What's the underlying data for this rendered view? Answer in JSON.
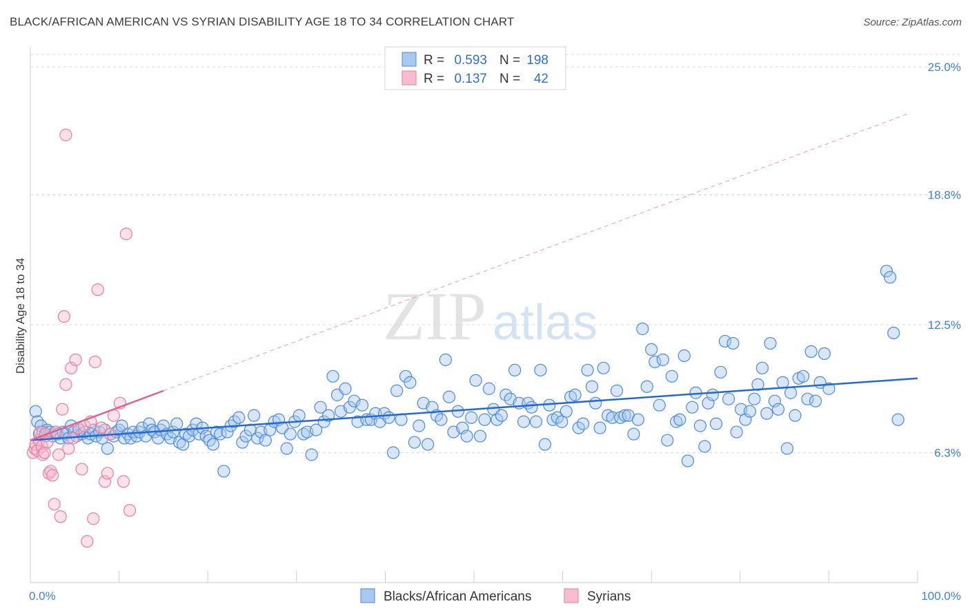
{
  "title": "BLACK/AFRICAN AMERICAN VS SYRIAN DISABILITY AGE 18 TO 34 CORRELATION CHART",
  "source": "Source: ZipAtlas.com",
  "watermark": {
    "zip": "ZIP",
    "atlas": "atlas"
  },
  "colors": {
    "blue_fill": "#a8c8f0",
    "blue_stroke": "#4a8ad8",
    "blue_line": "#2468d0",
    "pink_fill": "#f6bcd0",
    "pink_stroke": "#e57ca0",
    "pink_line": "#e0608c",
    "grid": "#d9d9d9",
    "tick_text": "#3e7fd8"
  },
  "legend": {
    "rows": [
      {
        "r_label": "R =",
        "r_value": "0.593",
        "n_label": "N =",
        "n_value": "198",
        "series": "blue"
      },
      {
        "r_label": "R =",
        "r_value": "0.137",
        "n_label": "N =",
        "n_value": "42",
        "series": "pink"
      }
    ]
  },
  "chart_data": {
    "type": "scatter",
    "title": "BLACK/AFRICAN AMERICAN VS SYRIAN DISABILITY AGE 18 TO 34 CORRELATION CHART",
    "xlabel": "",
    "ylabel": "Disability Age 18 to 34",
    "xlim": [
      0,
      100
    ],
    "ylim": [
      0,
      25.0
    ],
    "x_tick_labels": [
      "0.0%",
      "100.0%"
    ],
    "y_ticks": [
      6.3,
      12.5,
      18.8,
      25.0
    ],
    "y_tick_labels": [
      "6.3%",
      "12.5%",
      "18.8%",
      "25.0%"
    ],
    "grid": "horizontal dashed",
    "legend_position": "top-center",
    "series": [
      {
        "name": "Blacks/African Americans",
        "color": "#4a8ad8",
        "trend": {
          "x": [
            0,
            100
          ],
          "y": [
            6.9,
            9.9
          ]
        },
        "points": [
          [
            0.6,
            8.3
          ],
          [
            0.8,
            7.8
          ],
          [
            1.0,
            7.2
          ],
          [
            1.2,
            7.6
          ],
          [
            1.4,
            7.3
          ],
          [
            1.7,
            7.1
          ],
          [
            1.9,
            7.4
          ],
          [
            2.2,
            7.3
          ],
          [
            2.5,
            7.1
          ],
          [
            2.8,
            7.3
          ],
          [
            3.1,
            7.2
          ],
          [
            3.4,
            7.0
          ],
          [
            3.7,
            7.3
          ],
          [
            4.0,
            7.2
          ],
          [
            4.3,
            7.0
          ],
          [
            4.6,
            7.6
          ],
          [
            4.9,
            7.3
          ],
          [
            5.2,
            7.1
          ],
          [
            5.5,
            7.4
          ],
          [
            5.8,
            7.2
          ],
          [
            6.1,
            7.3
          ],
          [
            6.5,
            7.0
          ],
          [
            6.8,
            7.2
          ],
          [
            7.1,
            7.4
          ],
          [
            7.4,
            7.1
          ],
          [
            7.8,
            7.3
          ],
          [
            8.1,
            7.0
          ],
          [
            8.4,
            7.4
          ],
          [
            8.7,
            6.5
          ],
          [
            9.0,
            7.2
          ],
          [
            9.4,
            7.1
          ],
          [
            9.7,
            7.3
          ],
          [
            10.0,
            7.4
          ],
          [
            10.3,
            7.6
          ],
          [
            10.6,
            7.0
          ],
          [
            11.0,
            7.2
          ],
          [
            11.3,
            7.0
          ],
          [
            11.6,
            7.3
          ],
          [
            12.0,
            7.1
          ],
          [
            12.3,
            7.3
          ],
          [
            12.6,
            7.5
          ],
          [
            13.0,
            7.1
          ],
          [
            13.4,
            7.7
          ],
          [
            13.7,
            7.4
          ],
          [
            14.0,
            7.3
          ],
          [
            14.4,
            7.0
          ],
          [
            14.7,
            7.4
          ],
          [
            15.0,
            7.6
          ],
          [
            15.4,
            7.2
          ],
          [
            15.8,
            7.0
          ],
          [
            16.1,
            7.3
          ],
          [
            16.5,
            7.7
          ],
          [
            16.8,
            6.8
          ],
          [
            17.2,
            6.7
          ],
          [
            17.5,
            7.2
          ],
          [
            17.9,
            7.1
          ],
          [
            18.3,
            7.4
          ],
          [
            18.7,
            7.7
          ],
          [
            19.0,
            7.2
          ],
          [
            19.4,
            7.5
          ],
          [
            19.8,
            7.1
          ],
          [
            20.2,
            6.9
          ],
          [
            20.6,
            6.7
          ],
          [
            21.0,
            7.3
          ],
          [
            21.4,
            7.2
          ],
          [
            21.8,
            5.4
          ],
          [
            22.2,
            7.3
          ],
          [
            22.6,
            7.6
          ],
          [
            23.0,
            7.8
          ],
          [
            23.5,
            8.0
          ],
          [
            23.9,
            6.8
          ],
          [
            24.3,
            7.1
          ],
          [
            24.8,
            7.4
          ],
          [
            25.2,
            8.1
          ],
          [
            25.6,
            7.0
          ],
          [
            26.0,
            7.3
          ],
          [
            26.5,
            6.9
          ],
          [
            27.0,
            7.4
          ],
          [
            27.5,
            7.8
          ],
          [
            28.0,
            7.9
          ],
          [
            28.4,
            7.5
          ],
          [
            28.9,
            6.5
          ],
          [
            29.3,
            7.2
          ],
          [
            29.8,
            7.8
          ],
          [
            30.3,
            8.1
          ],
          [
            30.8,
            7.2
          ],
          [
            31.2,
            7.3
          ],
          [
            31.7,
            6.2
          ],
          [
            32.2,
            7.4
          ],
          [
            32.7,
            8.5
          ],
          [
            33.1,
            7.8
          ],
          [
            33.6,
            8.1
          ],
          [
            34.1,
            10.0
          ],
          [
            34.6,
            9.1
          ],
          [
            35.0,
            8.3
          ],
          [
            35.5,
            9.4
          ],
          [
            36.0,
            8.5
          ],
          [
            36.5,
            8.8
          ],
          [
            36.9,
            7.8
          ],
          [
            37.4,
            8.6
          ],
          [
            37.9,
            7.9
          ],
          [
            38.4,
            7.9
          ],
          [
            38.9,
            8.2
          ],
          [
            39.4,
            7.8
          ],
          [
            39.9,
            8.2
          ],
          [
            40.4,
            8.0
          ],
          [
            40.9,
            6.3
          ],
          [
            41.3,
            9.3
          ],
          [
            41.8,
            7.9
          ],
          [
            42.3,
            10.0
          ],
          [
            42.8,
            9.7
          ],
          [
            43.3,
            6.8
          ],
          [
            43.8,
            7.6
          ],
          [
            44.3,
            8.7
          ],
          [
            44.8,
            6.7
          ],
          [
            45.3,
            8.5
          ],
          [
            45.8,
            8.1
          ],
          [
            46.3,
            7.9
          ],
          [
            46.8,
            10.8
          ],
          [
            47.2,
            9.0
          ],
          [
            47.7,
            7.3
          ],
          [
            48.2,
            8.3
          ],
          [
            48.7,
            7.5
          ],
          [
            49.2,
            7.1
          ],
          [
            49.7,
            8.0
          ],
          [
            50.2,
            9.8
          ],
          [
            50.7,
            7.1
          ],
          [
            51.2,
            7.9
          ],
          [
            51.7,
            9.4
          ],
          [
            52.2,
            8.4
          ],
          [
            52.6,
            7.9
          ],
          [
            53.1,
            8.1
          ],
          [
            53.6,
            9.1
          ],
          [
            54.1,
            8.9
          ],
          [
            54.6,
            10.3
          ],
          [
            55.1,
            8.7
          ],
          [
            55.6,
            7.8
          ],
          [
            56.1,
            8.7
          ],
          [
            56.5,
            8.5
          ],
          [
            57.0,
            7.8
          ],
          [
            57.5,
            10.3
          ],
          [
            58.0,
            6.7
          ],
          [
            58.5,
            8.6
          ],
          [
            58.9,
            7.9
          ],
          [
            59.4,
            8.0
          ],
          [
            59.9,
            7.8
          ],
          [
            60.4,
            8.3
          ],
          [
            60.9,
            9.0
          ],
          [
            61.4,
            9.1
          ],
          [
            61.8,
            7.5
          ],
          [
            62.3,
            7.7
          ],
          [
            62.8,
            10.3
          ],
          [
            63.3,
            9.5
          ],
          [
            63.7,
            8.7
          ],
          [
            64.2,
            7.5
          ],
          [
            64.6,
            10.4
          ],
          [
            65.1,
            8.1
          ],
          [
            65.6,
            8.0
          ],
          [
            66.1,
            9.3
          ],
          [
            66.5,
            8.0
          ],
          [
            67.0,
            8.1
          ],
          [
            67.4,
            8.1
          ],
          [
            68.0,
            7.2
          ],
          [
            68.5,
            7.9
          ],
          [
            69.0,
            12.3
          ],
          [
            69.5,
            9.5
          ],
          [
            70.0,
            11.3
          ],
          [
            70.4,
            10.7
          ],
          [
            70.9,
            8.6
          ],
          [
            71.3,
            10.8
          ],
          [
            71.8,
            6.9
          ],
          [
            72.3,
            10.0
          ],
          [
            72.8,
            7.8
          ],
          [
            73.2,
            7.9
          ],
          [
            73.7,
            11.0
          ],
          [
            74.1,
            5.9
          ],
          [
            74.6,
            8.5
          ],
          [
            75.0,
            9.2
          ],
          [
            75.5,
            7.6
          ],
          [
            76.0,
            6.6
          ],
          [
            76.4,
            8.7
          ],
          [
            76.9,
            9.1
          ],
          [
            77.3,
            7.7
          ],
          [
            77.8,
            10.2
          ],
          [
            78.3,
            11.7
          ],
          [
            78.7,
            8.9
          ],
          [
            79.2,
            11.6
          ],
          [
            79.6,
            7.3
          ],
          [
            80.1,
            8.4
          ],
          [
            80.6,
            7.9
          ],
          [
            81.1,
            8.3
          ],
          [
            81.6,
            8.9
          ],
          [
            82.0,
            9.6
          ],
          [
            82.5,
            10.4
          ],
          [
            83.0,
            8.2
          ],
          [
            83.4,
            11.6
          ],
          [
            83.9,
            8.8
          ],
          [
            84.3,
            8.4
          ],
          [
            84.8,
            9.7
          ],
          [
            85.3,
            6.5
          ],
          [
            85.7,
            9.2
          ],
          [
            86.2,
            8.1
          ],
          [
            86.6,
            9.9
          ],
          [
            87.1,
            10.0
          ],
          [
            87.6,
            8.9
          ],
          [
            88.0,
            11.2
          ],
          [
            88.5,
            8.8
          ],
          [
            89.0,
            9.7
          ],
          [
            89.5,
            11.1
          ],
          [
            90.0,
            9.4
          ],
          [
            96.5,
            15.1
          ],
          [
            96.9,
            14.8
          ],
          [
            97.3,
            12.1
          ],
          [
            97.8,
            7.9
          ]
        ]
      },
      {
        "name": "Syrians",
        "color": "#e57ca0",
        "trend": {
          "x": [
            0,
            15.0
          ],
          "y": [
            6.9,
            9.3
          ]
        },
        "points": [
          [
            0.3,
            6.3
          ],
          [
            0.5,
            6.5
          ],
          [
            0.6,
            6.7
          ],
          [
            0.8,
            6.4
          ],
          [
            1.0,
            6.9
          ],
          [
            1.1,
            7.3
          ],
          [
            1.3,
            6.6
          ],
          [
            1.4,
            6.2
          ],
          [
            1.6,
            6.3
          ],
          [
            1.7,
            7.2
          ],
          [
            1.9,
            6.8
          ],
          [
            2.1,
            5.3
          ],
          [
            2.3,
            5.4
          ],
          [
            2.5,
            5.2
          ],
          [
            2.7,
            3.8
          ],
          [
            2.9,
            7.3
          ],
          [
            3.2,
            6.2
          ],
          [
            3.4,
            3.2
          ],
          [
            3.6,
            8.4
          ],
          [
            3.8,
            12.9
          ],
          [
            4.0,
            9.6
          ],
          [
            4.3,
            6.5
          ],
          [
            4.6,
            10.4
          ],
          [
            4.8,
            7.0
          ],
          [
            5.1,
            10.8
          ],
          [
            5.4,
            7.5
          ],
          [
            5.8,
            5.5
          ],
          [
            6.1,
            7.6
          ],
          [
            6.4,
            2.0
          ],
          [
            6.8,
            7.8
          ],
          [
            7.1,
            3.1
          ],
          [
            7.3,
            10.7
          ],
          [
            7.6,
            14.2
          ],
          [
            8.0,
            7.5
          ],
          [
            8.4,
            4.9
          ],
          [
            8.7,
            5.3
          ],
          [
            9.0,
            7.2
          ],
          [
            9.4,
            8.1
          ],
          [
            10.1,
            8.7
          ],
          [
            10.5,
            4.9
          ],
          [
            10.8,
            16.9
          ],
          [
            11.2,
            3.5
          ],
          [
            4.0,
            21.7
          ]
        ]
      }
    ]
  },
  "x_axis": {
    "left_label": "0.0%",
    "right_label": "100.0%"
  },
  "y_axis_title": "Disability Age 18 to 34",
  "bottom_legend": [
    {
      "label": "Blacks/African Americans",
      "series": "blue"
    },
    {
      "label": "Syrians",
      "series": "pink"
    }
  ]
}
